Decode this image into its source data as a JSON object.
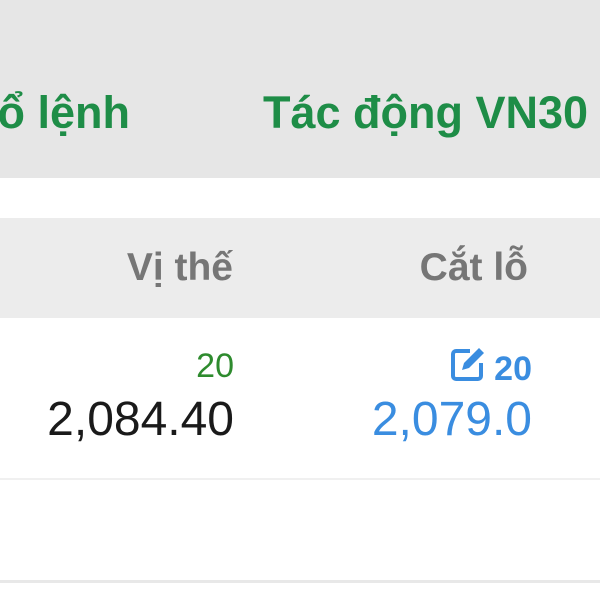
{
  "tabs": [
    {
      "label": "ổ lệnh"
    },
    {
      "label": "Tác động VN30"
    }
  ],
  "table": {
    "headers": [
      "Vị thế",
      "Cắt lỗ"
    ],
    "rows": [
      {
        "position_qty": "20",
        "position_price": "2,084.40",
        "stoploss_qty": "20",
        "stoploss_price": "2,079.0",
        "stoploss_icon": "edit-icon"
      }
    ]
  },
  "colors": {
    "tab": "#1e8d47",
    "qty": "#2e8b2e",
    "stoploss": "#3a8de0",
    "header": "#767676"
  }
}
